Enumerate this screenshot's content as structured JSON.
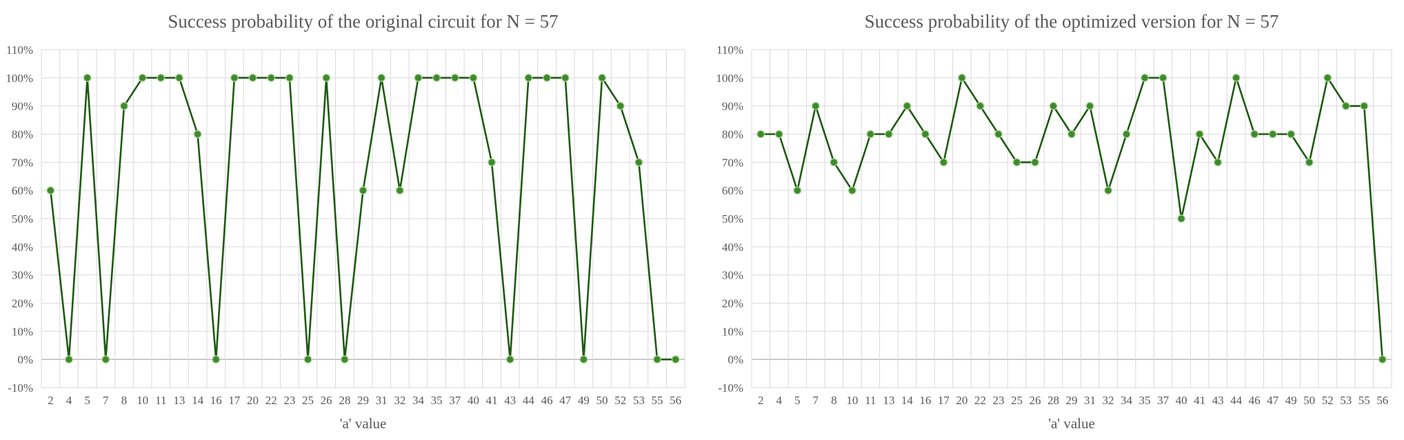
{
  "chart_data": [
    {
      "type": "line",
      "title": "Success probability of the original circuit for N = 57",
      "xlabel": "'a' value",
      "ylabel": "",
      "ylim": [
        -10,
        110
      ],
      "ytick_step": 10,
      "ytick_suffix": "%",
      "grid": true,
      "legend": "none",
      "color": "#1e5a12",
      "marker_fill": "#3d8a2e",
      "x": [
        "2",
        "4",
        "5",
        "7",
        "8",
        "10",
        "11",
        "13",
        "14",
        "16",
        "17",
        "20",
        "22",
        "23",
        "25",
        "26",
        "28",
        "29",
        "31",
        "32",
        "34",
        "35",
        "37",
        "40",
        "41",
        "43",
        "44",
        "46",
        "47",
        "49",
        "50",
        "52",
        "53",
        "55",
        "56"
      ],
      "values": [
        60,
        0,
        100,
        0,
        90,
        100,
        100,
        100,
        80,
        0,
        100,
        100,
        100,
        100,
        0,
        100,
        0,
        60,
        100,
        60,
        100,
        100,
        100,
        100,
        70,
        0,
        100,
        100,
        100,
        0,
        100,
        90,
        70,
        0,
        0
      ]
    },
    {
      "type": "line",
      "title": "Success probability of the optimized version for N = 57",
      "xlabel": "'a' value",
      "ylabel": "",
      "ylim": [
        -10,
        110
      ],
      "ytick_step": 10,
      "ytick_suffix": "%",
      "grid": true,
      "legend": "none",
      "color": "#1e5a12",
      "marker_fill": "#3d8a2e",
      "x": [
        "2",
        "4",
        "5",
        "7",
        "8",
        "10",
        "11",
        "13",
        "14",
        "16",
        "17",
        "20",
        "22",
        "23",
        "25",
        "26",
        "28",
        "29",
        "31",
        "32",
        "34",
        "35",
        "37",
        "40",
        "41",
        "43",
        "44",
        "46",
        "47",
        "49",
        "50",
        "52",
        "53",
        "55",
        "56"
      ],
      "values": [
        80,
        80,
        60,
        90,
        70,
        60,
        80,
        80,
        90,
        80,
        70,
        100,
        90,
        80,
        70,
        70,
        90,
        80,
        90,
        60,
        80,
        100,
        100,
        50,
        80,
        70,
        100,
        80,
        80,
        80,
        70,
        100,
        90,
        90,
        0
      ]
    }
  ]
}
